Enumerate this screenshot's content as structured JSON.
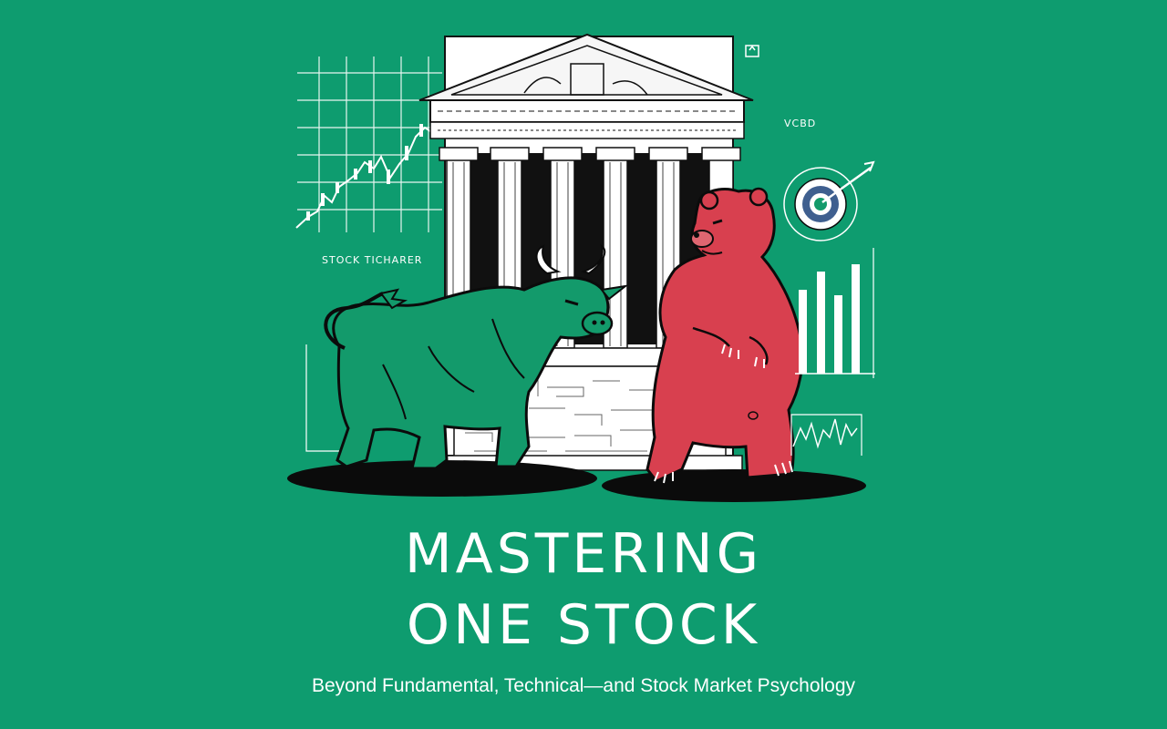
{
  "cover": {
    "title_line1": "MASTERING",
    "title_line2": "ONE STOCK",
    "subtitle": "Beyond Fundamental, Technical—and Stock Market Psychology",
    "chart_label": "STOCK TICHARER",
    "corner_label": "VCBD"
  },
  "icons": {
    "bull": "bull-illustration",
    "bear": "bear-illustration",
    "building": "stock-exchange-building-icon",
    "target": "target-icon",
    "bars": "bar-chart-icon",
    "candles": "candlestick-chart-icon"
  },
  "colors": {
    "background": "#0e9c6f",
    "bull": "#139a6b",
    "bear": "#d8404f",
    "ink": "#111111",
    "white": "#ffffff"
  }
}
